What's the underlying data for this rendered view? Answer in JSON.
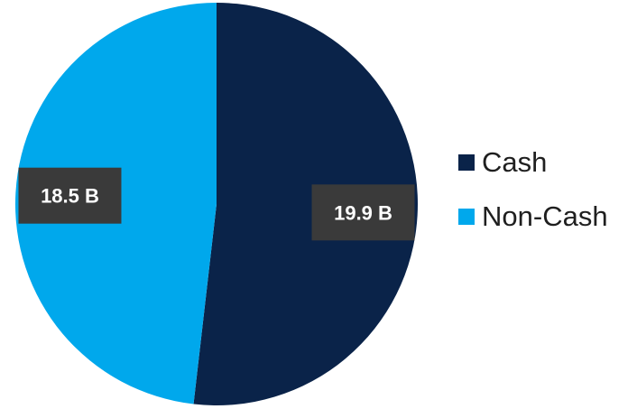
{
  "chart_data": {
    "type": "pie",
    "categories": [
      "Cash",
      "Non-Cash"
    ],
    "values": [
      19.9,
      18.5
    ],
    "data_labels": [
      "19.9 B",
      "18.5 B"
    ],
    "colors": [
      "#0a2349",
      "#00a8ec"
    ],
    "label_box_color": "#3a3a3a",
    "legend_position": "right",
    "start_angle": "12 o'clock, clockwise"
  },
  "legend": {
    "items": [
      {
        "label": "Cash",
        "color": "#0a2349"
      },
      {
        "label": "Non-Cash",
        "color": "#00a8ec"
      }
    ]
  }
}
